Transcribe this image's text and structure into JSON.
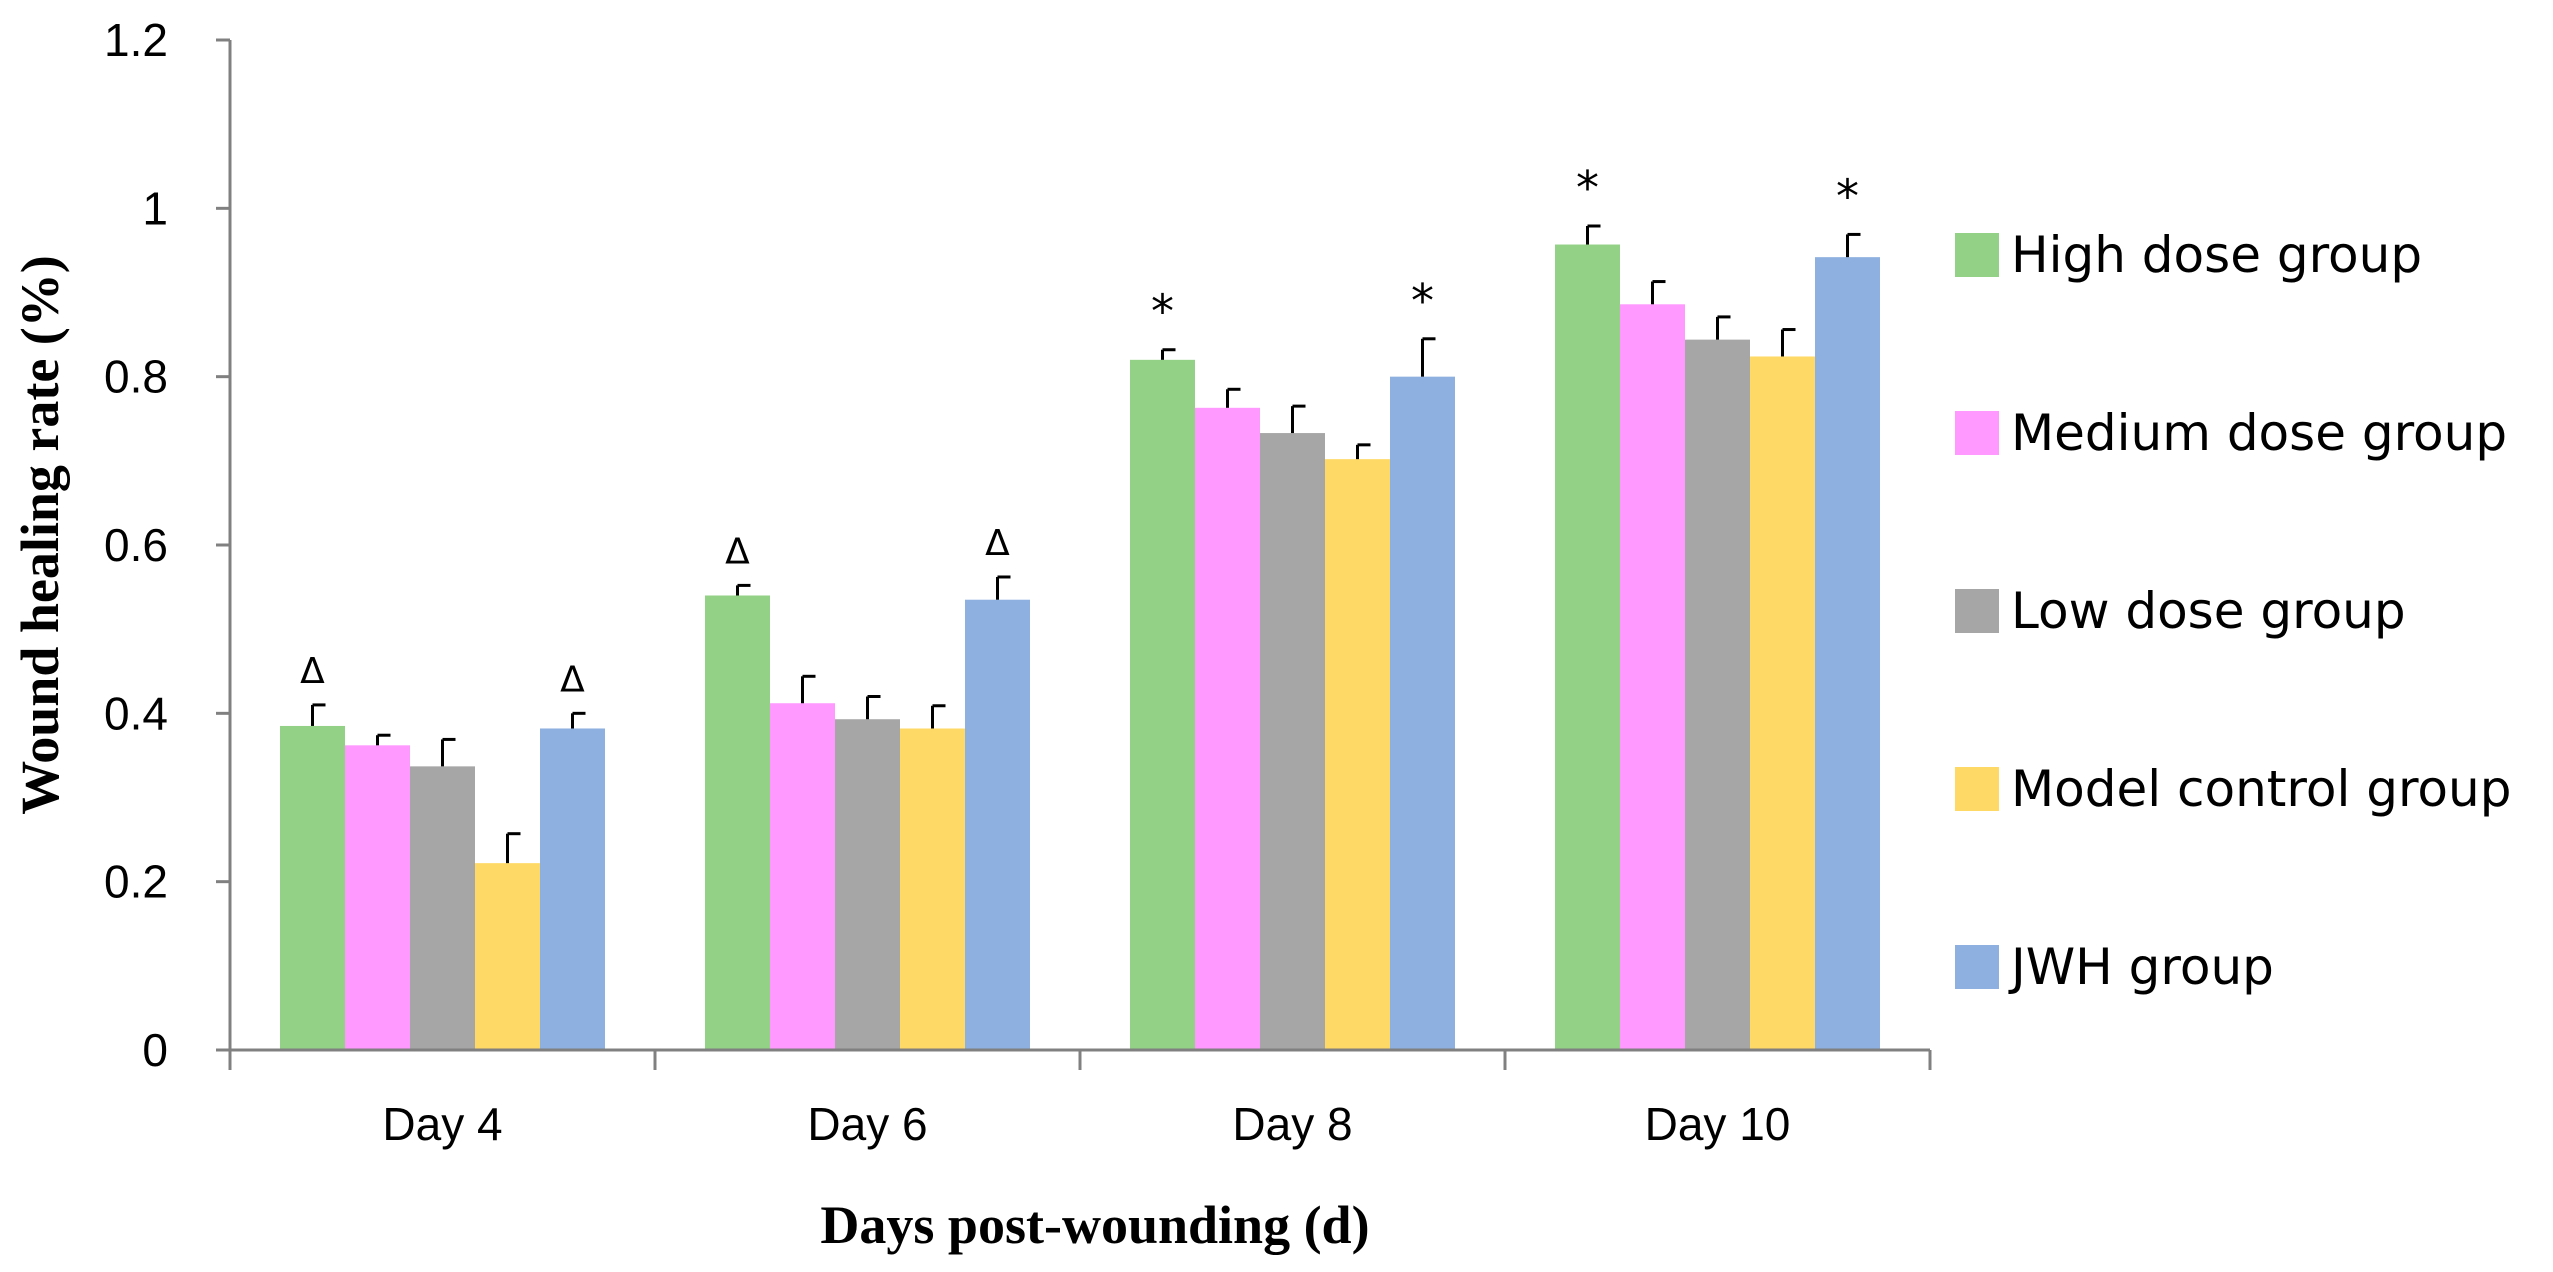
{
  "chart_data": {
    "type": "bar",
    "title": "",
    "xlabel": "Days post-wounding  (d)",
    "ylabel": "Wound healing rate  (%)",
    "ylim": [
      0,
      1.2
    ],
    "yticks": [
      0,
      0.2,
      0.4,
      0.6,
      0.8,
      1,
      1.2
    ],
    "ytick_labels": [
      "0",
      "0.2",
      "0.4",
      "0.6",
      "0.8",
      "1",
      "1.2"
    ],
    "categories": [
      "Day 4",
      "Day 6",
      "Day 8",
      "Day 10"
    ],
    "legend_position": "right",
    "series": [
      {
        "name": "High dose group",
        "color": "#92D186",
        "values": [
          0.385,
          0.54,
          0.82,
          0.957
        ],
        "errors": [
          0.025,
          0.012,
          0.012,
          0.022
        ],
        "markers": [
          "Δ",
          "Δ",
          "*",
          "*"
        ]
      },
      {
        "name": "Medium dose group",
        "color": "#FF99FF",
        "values": [
          0.362,
          0.412,
          0.763,
          0.886
        ],
        "errors": [
          0.012,
          0.032,
          0.022,
          0.027
        ],
        "markers": [
          "",
          "",
          "",
          ""
        ]
      },
      {
        "name": " Low dose group",
        "color": "#A6A6A6",
        "values": [
          0.337,
          0.393,
          0.733,
          0.844
        ],
        "errors": [
          0.032,
          0.027,
          0.032,
          0.027
        ],
        "markers": [
          "",
          "",
          "",
          ""
        ]
      },
      {
        "name": "Model control group",
        "color": "#FFD966",
        "values": [
          0.222,
          0.382,
          0.702,
          0.824
        ],
        "errors": [
          0.035,
          0.027,
          0.017,
          0.032
        ],
        "markers": [
          "",
          "",
          "",
          ""
        ]
      },
      {
        "name": "JWH group",
        "color": "#8DB0E0",
        "values": [
          0.382,
          0.535,
          0.8,
          0.942
        ],
        "errors": [
          0.018,
          0.027,
          0.045,
          0.027
        ],
        "markers": [
          "Δ",
          "Δ",
          "*",
          "*"
        ]
      }
    ]
  }
}
